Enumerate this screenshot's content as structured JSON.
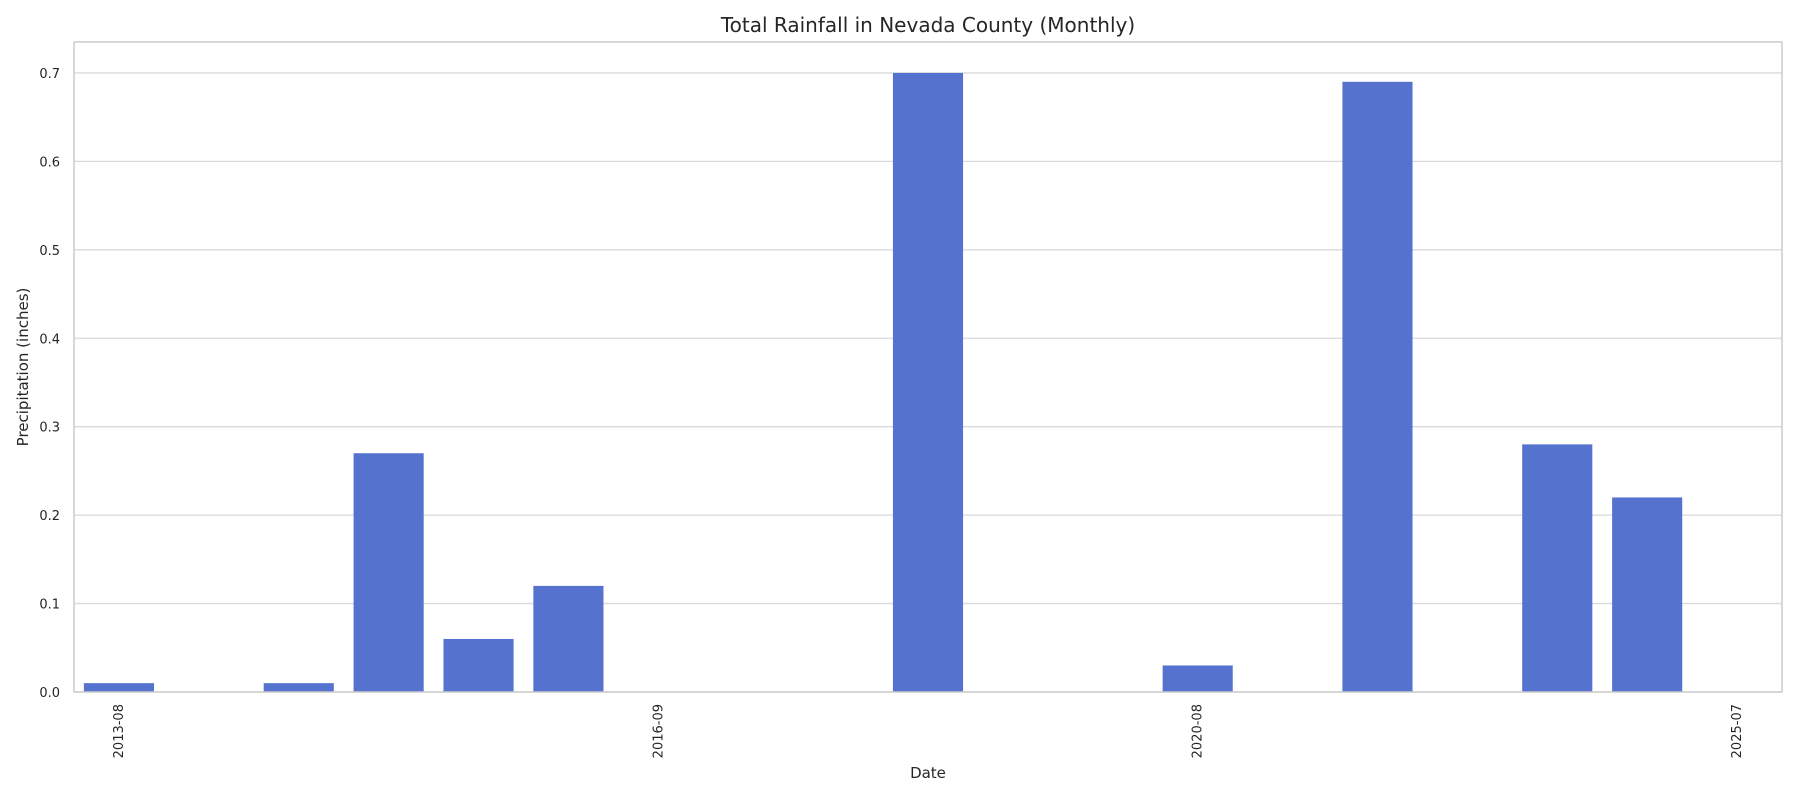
{
  "chart_data": {
    "type": "bar",
    "title": "Total Rainfall in Nevada County (Monthly)",
    "xlabel": "Date",
    "ylabel": "Precipitation (inches)",
    "ylim": [
      0,
      0.735
    ],
    "yticks": [
      0.0,
      0.1,
      0.2,
      0.3,
      0.4,
      0.5,
      0.6,
      0.7
    ],
    "ytick_labels": [
      "0.0",
      "0.1",
      "0.2",
      "0.3",
      "0.4",
      "0.5",
      "0.6",
      "0.7"
    ],
    "categories": [
      "2013-08",
      "",
      "",
      "",
      "",
      "",
      "2016-09",
      "",
      "",
      "",
      "",
      "",
      "2020-08",
      "",
      "",
      "",
      "",
      "",
      "2025-07"
    ],
    "xtick_labels_visible": [
      "2013-08",
      "2016-09",
      "2020-08",
      "2025-07"
    ],
    "values": [
      0.01,
      0,
      0.01,
      0.27,
      0.06,
      0.12,
      0,
      0,
      0,
      0.7,
      0,
      0,
      0.03,
      0,
      0.69,
      0,
      0.28,
      0.22,
      0
    ],
    "bar_color": "#5572cf",
    "grid": "horizontal",
    "legend": "none"
  }
}
